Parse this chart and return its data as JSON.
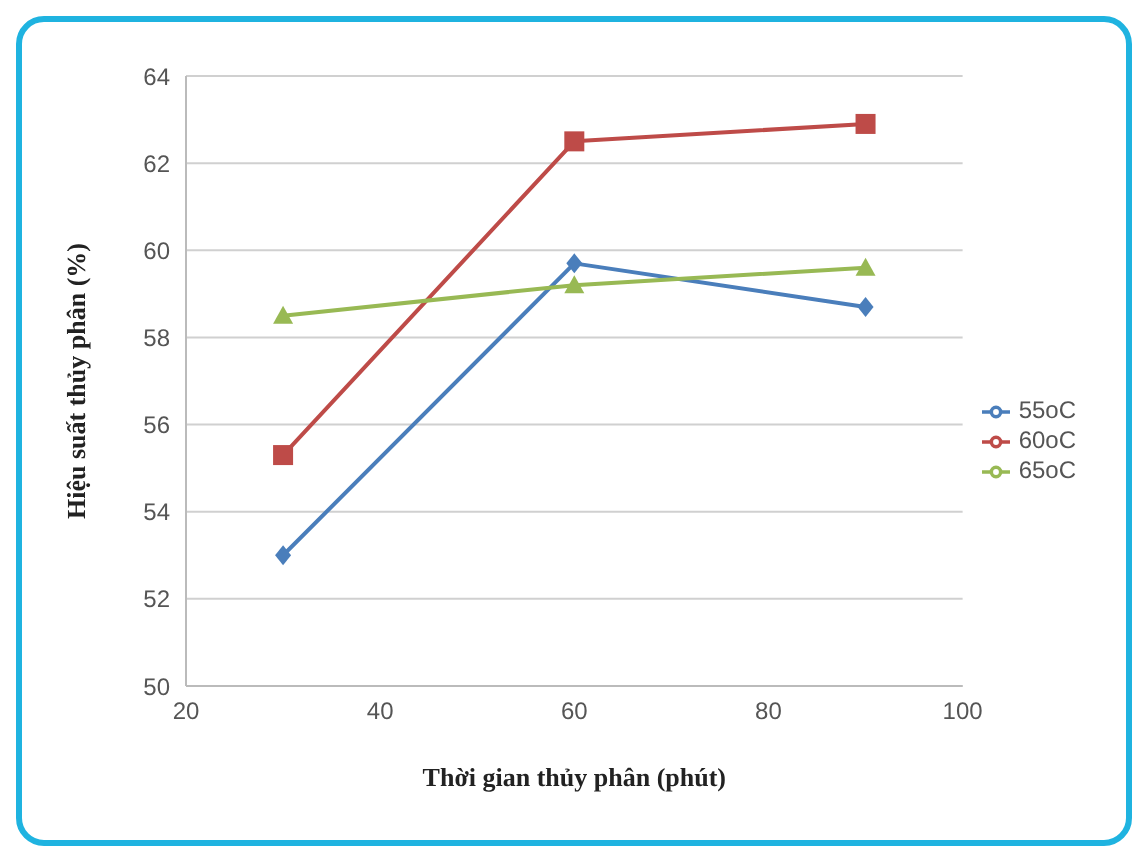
{
  "chart_data": {
    "type": "line",
    "xlabel": "Thời gian thủy phân (phút)",
    "ylabel": "Hiệu suất thủy phân (%)",
    "x": [
      30,
      60,
      90
    ],
    "series": [
      {
        "name": "55oC",
        "color": "#4a7ebb",
        "values": [
          53.0,
          59.7,
          58.7
        ],
        "marker": "diamond"
      },
      {
        "name": "60oC",
        "color": "#be4b48",
        "values": [
          55.3,
          62.5,
          62.9
        ],
        "marker": "square"
      },
      {
        "name": "65oC",
        "color": "#98b954",
        "values": [
          58.5,
          59.2,
          59.6
        ],
        "marker": "triangle"
      }
    ],
    "xlim": [
      20,
      100
    ],
    "xticks": [
      20,
      40,
      60,
      80,
      100
    ],
    "ylim": [
      50,
      64
    ],
    "yticks": [
      50,
      52,
      54,
      56,
      58,
      60,
      62,
      64
    ],
    "grid": "y",
    "legend": "right"
  }
}
